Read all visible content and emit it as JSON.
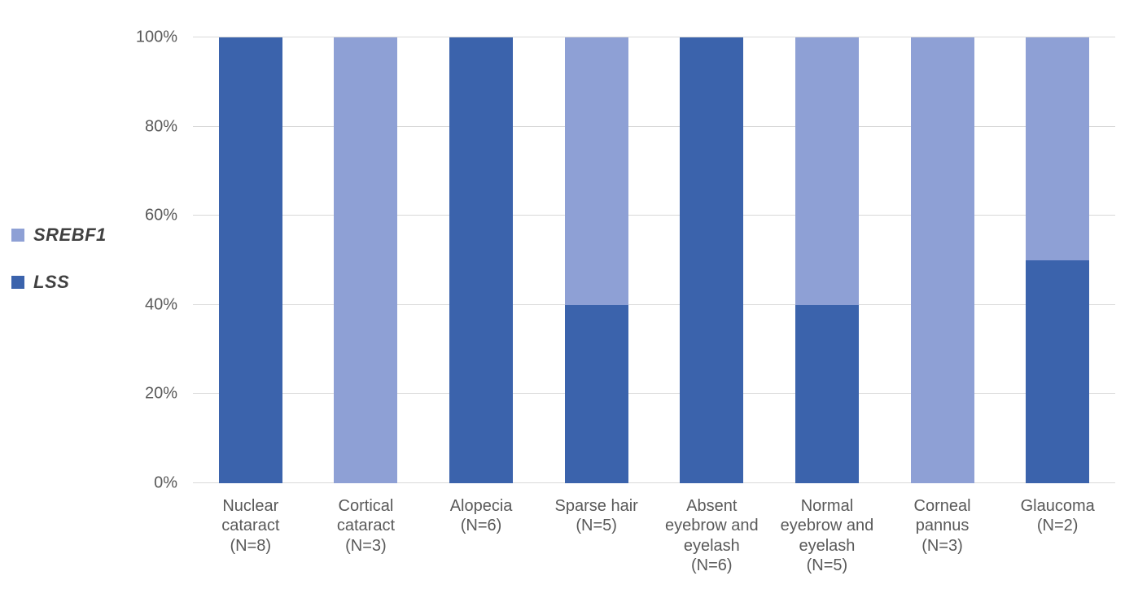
{
  "legend": {
    "items": [
      {
        "label": "SREBF1",
        "color": "#8EA0D5"
      },
      {
        "label": "LSS",
        "color": "#3B63AC"
      }
    ]
  },
  "chart_data": {
    "type": "bar",
    "stacked": true,
    "orientation": "vertical",
    "title": "",
    "xlabel": "",
    "ylabel": "",
    "ylim": [
      0,
      100
    ],
    "grid": true,
    "legend_position": "left",
    "y_ticks": [
      "0%",
      "20%",
      "40%",
      "60%",
      "80%",
      "100%"
    ],
    "categories": [
      {
        "label": "Nuclear cataract (N=8)",
        "lines": [
          "Nuclear",
          "cataract",
          "(N=8)"
        ]
      },
      {
        "label": "Cortical cataract (N=3)",
        "lines": [
          "Cortical",
          "cataract",
          "(N=3)"
        ]
      },
      {
        "label": "Alopecia (N=6)",
        "lines": [
          "Alopecia",
          "(N=6)"
        ]
      },
      {
        "label": "Sparse hair (N=5)",
        "lines": [
          "Sparse hair",
          "(N=5)"
        ]
      },
      {
        "label": "Absent eyebrow and eyelash (N=6)",
        "lines": [
          "Absent",
          "eyebrow and",
          "eyelash",
          "(N=6)"
        ]
      },
      {
        "label": "Normal eyebrow and eyelash (N=5)",
        "lines": [
          "Normal",
          "eyebrow and",
          "eyelash",
          "(N=5)"
        ]
      },
      {
        "label": "Corneal pannus (N=3)",
        "lines": [
          "Corneal",
          "pannus",
          "(N=3)"
        ]
      },
      {
        "label": "Glaucoma (N=2)",
        "lines": [
          "Glaucoma",
          "(N=2)"
        ]
      }
    ],
    "series": [
      {
        "name": "LSS",
        "color": "#3B63AC",
        "values": [
          100,
          0,
          100,
          40,
          100,
          40,
          0,
          50
        ]
      },
      {
        "name": "SREBF1",
        "color": "#8EA0D5",
        "values": [
          0,
          100,
          0,
          60,
          0,
          60,
          100,
          50
        ]
      }
    ],
    "colors": {
      "gridline": "#d9d9d9",
      "axis_text": "#595959",
      "legend_text": "#404040"
    }
  }
}
